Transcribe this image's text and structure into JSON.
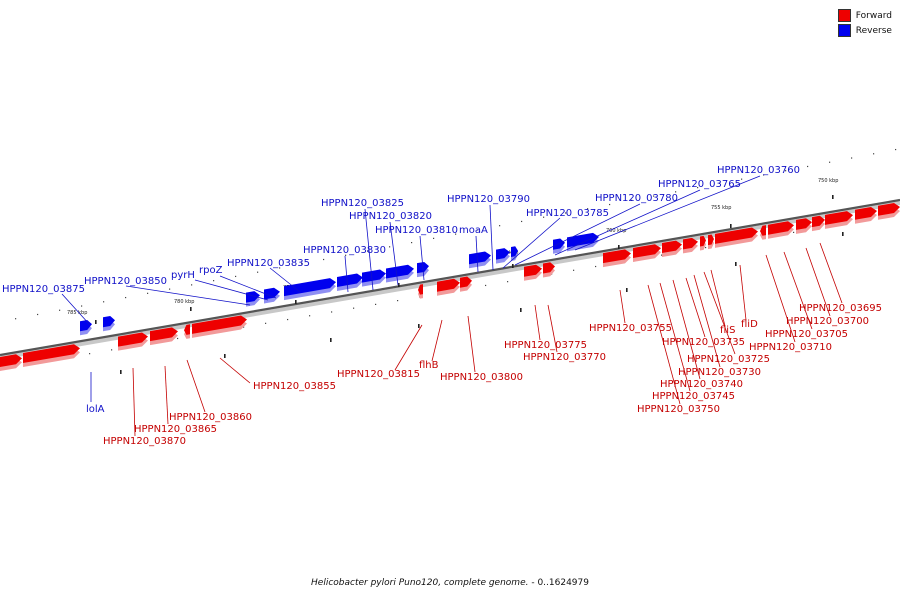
{
  "legend": {
    "forward_label": "Forward",
    "reverse_label": "Reverse",
    "forward_color": "#ee0000",
    "reverse_color": "#0000ee"
  },
  "caption": {
    "organism": "Helicobacter pylori Puno120, complete genome.",
    "range": " - 0..1624979"
  },
  "ticks": [
    "785 kbp",
    "780 kbp",
    "775 kbp",
    "770 kbp",
    "765 kbp",
    "760 kbp",
    "755 kbp",
    "750 kbp"
  ],
  "genes_forward": [
    {
      "name": "HPPN120_03870"
    },
    {
      "name": "HPPN120_03865"
    },
    {
      "name": "HPPN120_03860"
    },
    {
      "name": "HPPN120_03855"
    },
    {
      "name": "HPPN120_03815"
    },
    {
      "name": "flhB"
    },
    {
      "name": "HPPN120_03800"
    },
    {
      "name": "HPPN120_03775"
    },
    {
      "name": "HPPN120_03770"
    },
    {
      "name": "HPPN120_03755"
    },
    {
      "name": "HPPN120_03750"
    },
    {
      "name": "HPPN120_03745"
    },
    {
      "name": "HPPN120_03740"
    },
    {
      "name": "HPPN120_03735"
    },
    {
      "name": "HPPN120_03730"
    },
    {
      "name": "HPPN120_03725"
    },
    {
      "name": "fliS"
    },
    {
      "name": "fliD"
    },
    {
      "name": "HPPN120_03710"
    },
    {
      "name": "HPPN120_03705"
    },
    {
      "name": "HPPN120_03700"
    },
    {
      "name": "HPPN120_03695"
    }
  ],
  "genes_reverse": [
    {
      "name": "HPPN120_03875"
    },
    {
      "name": "lolA"
    },
    {
      "name": "HPPN120_03850"
    },
    {
      "name": "pyrH"
    },
    {
      "name": "rpoZ"
    },
    {
      "name": "HPPN120_03835"
    },
    {
      "name": "HPPN120_03830"
    },
    {
      "name": "HPPN120_03825"
    },
    {
      "name": "HPPN120_03820"
    },
    {
      "name": "HPPN120_03810"
    },
    {
      "name": "moaA"
    },
    {
      "name": "HPPN120_03790"
    },
    {
      "name": "HPPN120_03785"
    },
    {
      "name": "HPPN120_03780"
    },
    {
      "name": "HPPN120_03765"
    },
    {
      "name": "HPPN120_03760"
    }
  ]
}
